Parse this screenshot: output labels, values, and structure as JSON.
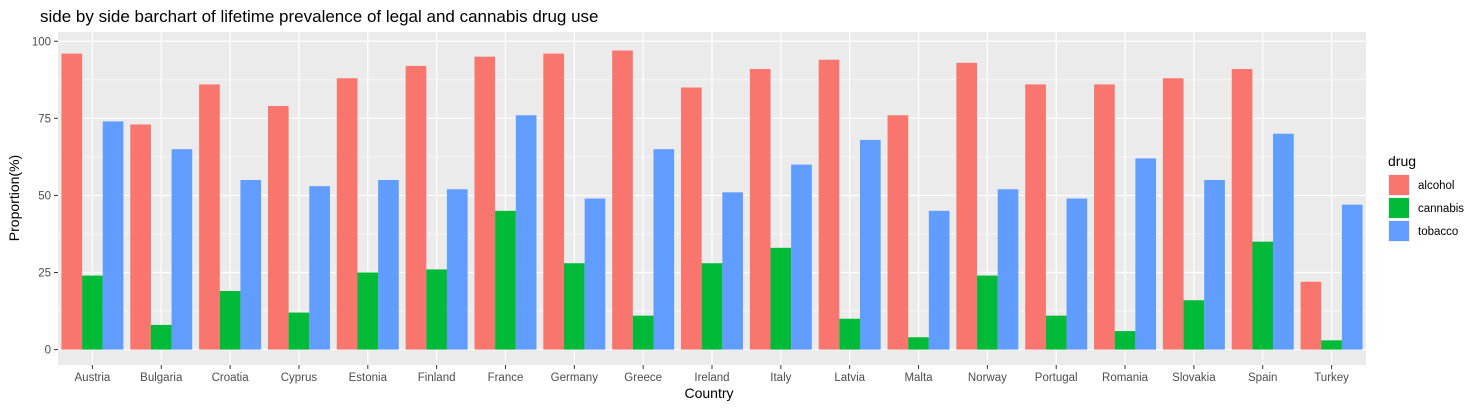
{
  "chart_data": {
    "type": "bar",
    "title": "side by side barchart of lifetime prevalence of legal and cannabis drug use",
    "xlabel": "Country",
    "ylabel": "Proportion(%)",
    "ylim": [
      -5,
      103
    ],
    "yticks": [
      0,
      25,
      50,
      75,
      100
    ],
    "categories": [
      "Austria",
      "Bulgaria",
      "Croatia",
      "Cyprus",
      "Estonia",
      "Finland",
      "France",
      "Germany",
      "Greece",
      "Ireland",
      "Italy",
      "Latvia",
      "Malta",
      "Norway",
      "Portugal",
      "Romania",
      "Slovakia",
      "Spain",
      "Turkey"
    ],
    "legend": {
      "title": "drug",
      "position": "right"
    },
    "grid": true,
    "series": [
      {
        "name": "alcohol",
        "color": "#F8766D",
        "values": [
          96,
          73,
          86,
          79,
          88,
          92,
          95,
          96,
          97,
          85,
          91,
          94,
          76,
          93,
          86,
          86,
          88,
          91,
          22
        ]
      },
      {
        "name": "cannabis",
        "color": "#00BA38",
        "values": [
          24,
          8,
          19,
          12,
          25,
          26,
          45,
          28,
          11,
          28,
          33,
          10,
          4,
          24,
          11,
          6,
          16,
          35,
          3
        ]
      },
      {
        "name": "tobacco",
        "color": "#619CFF",
        "values": [
          74,
          65,
          55,
          53,
          55,
          52,
          76,
          49,
          65,
          51,
          60,
          68,
          45,
          52,
          49,
          62,
          55,
          70,
          47
        ]
      }
    ]
  }
}
